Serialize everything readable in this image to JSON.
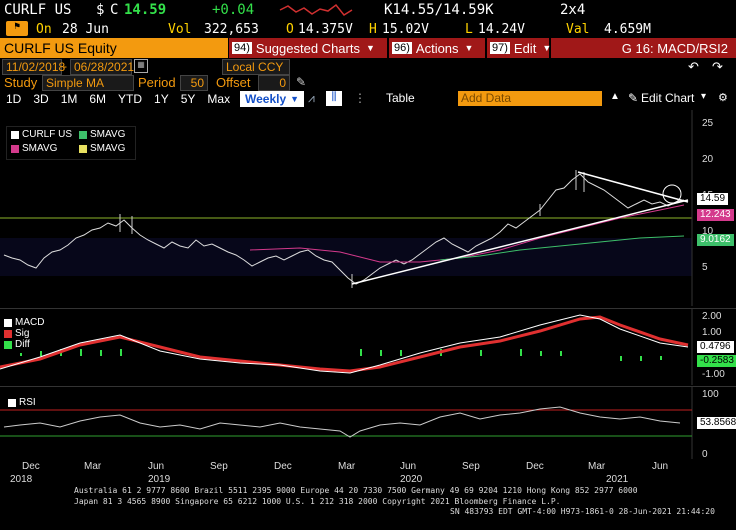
{
  "quote": {
    "ticker": "CURLF US",
    "currency": "$",
    "flag": "C",
    "last": "14.59",
    "change": "+0.04",
    "bidask": "K14.55/14.59K",
    "size": "2x4",
    "date_prefix": "On",
    "date": "28 Jun",
    "vol_label": "Vol",
    "vol": "322,653",
    "open_label": "O",
    "open": "14.375V",
    "high_label": "H",
    "high": "15.02V",
    "low_label": "L",
    "low": "14.24V",
    "val_label": "Val",
    "val": "4.659M"
  },
  "toolbar": {
    "security": "CURLF US Equity",
    "suggested": "Suggested Charts",
    "suggested_num": "94)",
    "actions": "Actions",
    "actions_num": "96)",
    "edit": "Edit",
    "edit_num": "97)",
    "chart_id": "G 16: MACD/RSI2"
  },
  "range": {
    "start": "11/02/2018",
    "end": "06/28/2021",
    "currency": "Local CCY"
  },
  "study": {
    "label": "Study",
    "value": "Simple MA",
    "period_label": "Period",
    "period": "50",
    "offset_label": "Offset",
    "offset": "0"
  },
  "periods": [
    "1D",
    "3D",
    "1M",
    "6M",
    "YTD",
    "1Y",
    "5Y",
    "Max"
  ],
  "frequency": "Weekly",
  "table_btn": "Table",
  "add_data": "Add Data",
  "edit_chart": "Edit Chart",
  "legend": {
    "price": "CURLF US",
    "sma1": "SMAVG",
    "sma2": "SMAVG",
    "sma3": "SMAVG",
    "macd": "MACD",
    "sig": "Sig",
    "diff": "Diff",
    "rsi": "RSI"
  },
  "colors": {
    "orange": "#f39a0f",
    "price": "#ffffff",
    "sma_green": "#3dbf6a",
    "sma_magenta": "#d43a8c",
    "sma_yellow": "#e8e060",
    "macd": "#ffffff",
    "signal": "#e03030",
    "diff": "#33e04a"
  },
  "price_axis": [
    "25",
    "20",
    "15",
    "10",
    "5"
  ],
  "price_labels": {
    "last": "14.59",
    "sma_a": "12.243",
    "sma_b": "9.0162"
  },
  "macd_axis": [
    "2.00",
    "1.00",
    "-1.00"
  ],
  "macd_labels": {
    "macd": "0.4796",
    "diff": "-0.2583"
  },
  "rsi_axis": [
    "100",
    "0"
  ],
  "rsi_label": "53.8568",
  "x_months": [
    "Dec",
    "Mar",
    "Jun",
    "Sep",
    "Dec",
    "Mar",
    "Jun",
    "Sep",
    "Dec",
    "Mar",
    "Jun"
  ],
  "x_years": [
    "2018",
    "2019",
    "2020",
    "2021"
  ],
  "footer": {
    "line1": "Australia 61 2 9777 8600 Brazil 5511 2395 9000 Europe 44 20 7330 7500 Germany 49 69 9204 1210 Hong Kong 852 2977 6000",
    "line2": "Japan 81 3 4565 8900        Singapore 65 6212 1000        U.S. 1 212 318 2000             Copyright 2021 Bloomberg Finance L.P.",
    "line3": "SN 483793 EDT GMT-4:00 H973-1861-0 28-Jun-2021 21:44:20"
  }
}
